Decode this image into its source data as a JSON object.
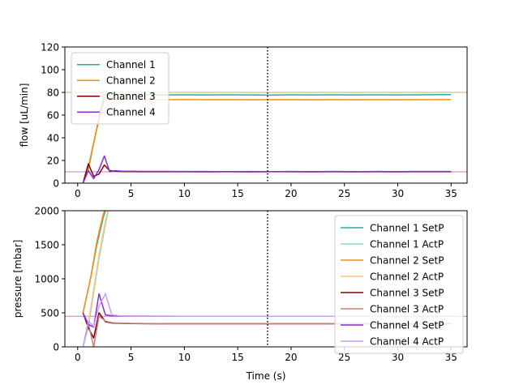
{
  "figure": {
    "xlabel": "Time (s)"
  },
  "chart_data": [
    {
      "type": "line",
      "title": "",
      "xlabel": "",
      "ylabel": "flow [uL/min]",
      "xlim": [
        -1.2,
        36.5
      ],
      "ylim": [
        0,
        120
      ],
      "xticks": [
        0,
        5,
        10,
        15,
        20,
        25,
        30,
        35
      ],
      "xtick_labels": [
        "0",
        "5",
        "10",
        "15",
        "20",
        "25",
        "30",
        "35"
      ],
      "yticks": [
        0,
        20,
        40,
        60,
        80,
        100,
        120
      ],
      "ytick_labels": [
        "0",
        "20",
        "40",
        "60",
        "80",
        "100",
        "120"
      ],
      "grid": false,
      "legend": "upper left",
      "hlines": [
        {
          "y": 80,
          "color": "#c8b070"
        },
        {
          "y": 10,
          "color": "#c080c0"
        }
      ],
      "vline": {
        "x": 17.8,
        "style": "dotted",
        "color": "#000000"
      },
      "series": [
        {
          "name": "Channel 1",
          "color": "#20b2aa",
          "x": [
            0.5,
            1.0,
            1.5,
            2.0,
            2.5,
            3.0,
            4,
            5,
            6,
            8,
            10,
            12,
            14,
            16,
            18,
            20,
            22,
            24,
            26,
            28,
            30,
            32,
            34,
            35
          ],
          "y": [
            0,
            12,
            35,
            58,
            78,
            78.5,
            78.2,
            78.0,
            78.0,
            77.8,
            77.9,
            77.8,
            77.9,
            77.8,
            77.6,
            77.9,
            77.8,
            77.9,
            77.8,
            77.9,
            77.8,
            77.9,
            78.0,
            78.0
          ]
        },
        {
          "name": "Channel 2",
          "color": "#ff8c00",
          "x": [
            0.5,
            1.0,
            1.5,
            2.0,
            2.5,
            3.0,
            4,
            5,
            6,
            8,
            10,
            12,
            14,
            16,
            18,
            20,
            22,
            24,
            26,
            28,
            30,
            32,
            34,
            35
          ],
          "y": [
            0,
            14,
            36,
            56,
            73,
            74.5,
            74.0,
            73.8,
            73.7,
            73.6,
            73.7,
            73.6,
            73.6,
            73.5,
            73.6,
            73.6,
            73.5,
            73.6,
            73.5,
            73.6,
            73.5,
            73.6,
            73.7,
            73.7
          ]
        },
        {
          "name": "Channel 3",
          "color": "#800000",
          "x": [
            0.5,
            1.0,
            1.5,
            2.0,
            2.5,
            3.0,
            3.5,
            4,
            5,
            6,
            8,
            10,
            12,
            14,
            16,
            18,
            20,
            22,
            24,
            26,
            28,
            30,
            32,
            34,
            35
          ],
          "y": [
            0,
            17,
            6,
            8,
            16,
            11,
            10.5,
            10.3,
            10.2,
            10.1,
            10.1,
            10.1,
            10.0,
            10.1,
            10.0,
            10.1,
            10.1,
            10.0,
            10.1,
            10.0,
            10.1,
            10.0,
            10.1,
            10.1,
            10.1
          ]
        },
        {
          "name": "Channel 4",
          "color": "#8a2be2",
          "x": [
            0.5,
            1.0,
            1.5,
            2.0,
            2.5,
            3.0,
            3.5,
            4,
            5,
            6,
            8,
            10,
            12,
            14,
            16,
            18,
            20,
            22,
            24,
            26,
            28,
            30,
            32,
            34,
            35
          ],
          "y": [
            0,
            11,
            4,
            12,
            24,
            10,
            11,
            10.6,
            10.5,
            10.4,
            10.4,
            10.3,
            10.3,
            10.2,
            10.3,
            10.2,
            10.3,
            10.2,
            10.3,
            10.2,
            10.3,
            10.2,
            10.3,
            10.3,
            10.3
          ]
        }
      ]
    },
    {
      "type": "line",
      "title": "",
      "xlabel": "Time (s)",
      "ylabel": "pressure [mbar]",
      "xlim": [
        -1.2,
        36.5
      ],
      "ylim": [
        0,
        2000
      ],
      "xticks": [
        0,
        5,
        10,
        15,
        20,
        25,
        30,
        35
      ],
      "xtick_labels": [
        "0",
        "5",
        "10",
        "15",
        "20",
        "25",
        "30",
        "35"
      ],
      "yticks": [
        0,
        500,
        1000,
        1500,
        2000
      ],
      "ytick_labels": [
        "0",
        "500",
        "1000",
        "1500",
        "2000"
      ],
      "grid": false,
      "legend": "right",
      "hlines": [
        {
          "y": 2000,
          "color": "#c8b070"
        },
        {
          "y": 450,
          "color": "#c080c0"
        }
      ],
      "vline": {
        "x": 17.8,
        "style": "dotted",
        "color": "#000000"
      },
      "series": [
        {
          "name": "Channel 1 SetP",
          "color": "#20b2aa",
          "x": [
            0.5,
            1.2,
            1.8,
            2.4,
            2.8
          ],
          "y": [
            500,
            1000,
            1500,
            1900,
            2100
          ]
        },
        {
          "name": "Channel 1 ActP",
          "color": "#7fd8d2",
          "x": [
            0.5,
            1.0,
            1.5,
            2.0,
            2.6,
            3.0
          ],
          "y": [
            0,
            300,
            800,
            1300,
            1800,
            2100
          ]
        },
        {
          "name": "Channel 2 SetP",
          "color": "#ff8c00",
          "x": [
            0.5,
            1.2,
            1.8,
            2.4,
            2.8
          ],
          "y": [
            500,
            1000,
            1550,
            1950,
            2100
          ]
        },
        {
          "name": "Channel 2 ActP",
          "color": "#ffc27a",
          "x": [
            0.5,
            1.0,
            1.5,
            2.0,
            2.6,
            3.0
          ],
          "y": [
            0,
            350,
            850,
            1350,
            1850,
            2100
          ]
        },
        {
          "name": "Channel 3 SetP",
          "color": "#800000",
          "x": [
            0.5,
            1.0,
            1.5,
            2.0,
            2.6,
            3.2,
            4,
            5,
            7,
            10,
            15,
            20,
            25,
            30,
            35
          ],
          "y": [
            500,
            280,
            130,
            500,
            370,
            350,
            345,
            342,
            340,
            340,
            340,
            340,
            340,
            340,
            340
          ]
        },
        {
          "name": "Channel 3 ActP",
          "color": "#c88080",
          "x": [
            0.5,
            1.0,
            1.5,
            2.0,
            2.6,
            3.2,
            4,
            5,
            7,
            10,
            15,
            20,
            25,
            30,
            35
          ],
          "y": [
            0,
            350,
            0,
            450,
            380,
            355,
            348,
            345,
            342,
            340,
            340,
            340,
            340,
            340,
            340
          ]
        },
        {
          "name": "Channel 4 SetP",
          "color": "#8a2be2",
          "x": [
            0.5,
            1.0,
            1.5,
            2.0,
            2.6,
            3.2,
            4,
            5,
            7,
            10,
            15,
            20,
            25,
            30,
            35
          ],
          "y": [
            500,
            330,
            290,
            780,
            470,
            455,
            452,
            452,
            451,
            450,
            450,
            450,
            450,
            450,
            450
          ]
        },
        {
          "name": "Channel 4 ActP",
          "color": "#c9a0f0",
          "x": [
            0.5,
            1.0,
            1.5,
            2.0,
            2.6,
            3.2,
            4,
            5,
            7,
            10,
            15,
            20,
            25,
            30,
            35
          ],
          "y": [
            0,
            380,
            300,
            600,
            780,
            470,
            455,
            452,
            451,
            450,
            450,
            450,
            450,
            450,
            450
          ]
        }
      ]
    }
  ]
}
